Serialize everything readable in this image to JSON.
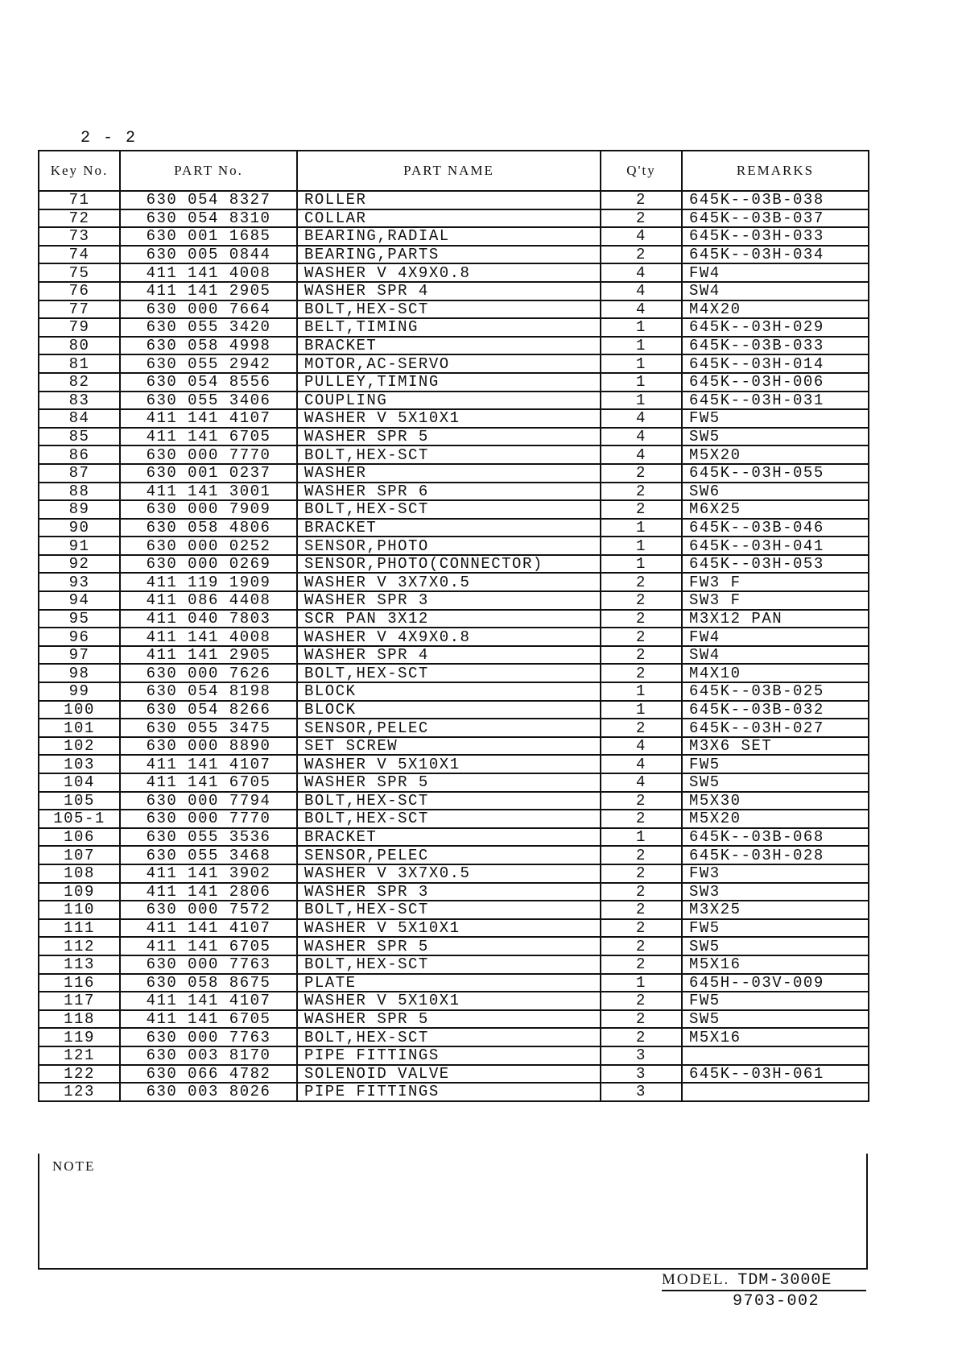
{
  "page_number": "2 - 2",
  "headers": {
    "key_no": "Key No.",
    "part_no": "PART No.",
    "part_name": "PART NAME",
    "qty": "Q'ty",
    "remarks": "REMARKS"
  },
  "rows": [
    [
      "71",
      "630 054 8327",
      "ROLLER",
      "2",
      "645K--03B-038"
    ],
    [
      "72",
      "630 054 8310",
      "COLLAR",
      "2",
      "645K--03B-037"
    ],
    [
      "73",
      "630 001 1685",
      "BEARING,RADIAL",
      "4",
      "645K--03H-033"
    ],
    [
      "74",
      "630 005 0844",
      "BEARING,PARTS",
      "2",
      "645K--03H-034"
    ],
    [
      "75",
      "411 141 4008",
      "WASHER V 4X9X0.8",
      "4",
      "FW4"
    ],
    [
      "76",
      "411 141 2905",
      "WASHER SPR 4",
      "4",
      "SW4"
    ],
    [
      "77",
      "630 000 7664",
      "BOLT,HEX-SCT",
      "4",
      "M4X20"
    ],
    [
      "79",
      "630 055 3420",
      "BELT,TIMING",
      "1",
      "645K--03H-029"
    ],
    [
      "80",
      "630 058 4998",
      "BRACKET",
      "1",
      "645K--03B-033"
    ],
    [
      "81",
      "630 055 2942",
      "MOTOR,AC-SERVO",
      "1",
      "645K--03H-014"
    ],
    [
      "82",
      "630 054 8556",
      "PULLEY,TIMING",
      "1",
      "645K--03H-006"
    ],
    [
      "83",
      "630 055 3406",
      "COUPLING",
      "1",
      "645K--03H-031"
    ],
    [
      "84",
      "411 141 4107",
      "WASHER V 5X10X1",
      "4",
      "FW5"
    ],
    [
      "85",
      "411 141 6705",
      "WASHER SPR 5",
      "4",
      "SW5"
    ],
    [
      "86",
      "630 000 7770",
      "BOLT,HEX-SCT",
      "4",
      "M5X20"
    ],
    [
      "87",
      "630 001 0237",
      "WASHER",
      "2",
      "645K--03H-055"
    ],
    [
      "88",
      "411 141 3001",
      "WASHER SPR 6",
      "2",
      "SW6"
    ],
    [
      "89",
      "630 000 7909",
      "BOLT,HEX-SCT",
      "2",
      "M6X25"
    ],
    [
      "90",
      "630 058 4806",
      "BRACKET",
      "1",
      "645K--03B-046"
    ],
    [
      "91",
      "630 000 0252",
      "SENSOR,PHOTO",
      "1",
      "645K--03H-041"
    ],
    [
      "92",
      "630 000 0269",
      "SENSOR,PHOTO(CONNECTOR)",
      "1",
      "645K--03H-053"
    ],
    [
      "93",
      "411 119 1909",
      "WASHER V 3X7X0.5",
      "2",
      "FW3 F"
    ],
    [
      "94",
      "411 086 4408",
      "WASHER SPR 3",
      "2",
      "SW3 F"
    ],
    [
      "95",
      "411 040 7803",
      "SCR PAN 3X12",
      "2",
      "M3X12 PAN"
    ],
    [
      "96",
      "411 141 4008",
      "WASHER V 4X9X0.8",
      "2",
      "FW4"
    ],
    [
      "97",
      "411 141 2905",
      "WASHER SPR 4",
      "2",
      "SW4"
    ],
    [
      "98",
      "630 000 7626",
      "BOLT,HEX-SCT",
      "2",
      "M4X10"
    ],
    [
      "99",
      "630 054 8198",
      "BLOCK",
      "1",
      "645K--03B-025"
    ],
    [
      "100",
      "630 054 8266",
      "BLOCK",
      "1",
      "645K--03B-032"
    ],
    [
      "101",
      "630 055 3475",
      "SENSOR,PELEC",
      "2",
      "645K--03H-027"
    ],
    [
      "102",
      "630 000 8890",
      "SET SCREW",
      "4",
      "M3X6 SET"
    ],
    [
      "103",
      "411 141 4107",
      "WASHER V 5X10X1",
      "4",
      "FW5"
    ],
    [
      "104",
      "411 141 6705",
      "WASHER SPR 5",
      "4",
      "SW5"
    ],
    [
      "105",
      "630 000 7794",
      "BOLT,HEX-SCT",
      "2",
      "M5X30"
    ],
    [
      "105-1",
      "630 000 7770",
      "BOLT,HEX-SCT",
      "2",
      "M5X20"
    ],
    [
      "106",
      "630 055 3536",
      "BRACKET",
      "1",
      "645K--03B-068"
    ],
    [
      "107",
      "630 055 3468",
      "SENSOR,PELEC",
      "2",
      "645K--03H-028"
    ],
    [
      "108",
      "411 141 3902",
      "WASHER V 3X7X0.5",
      "2",
      "FW3"
    ],
    [
      "109",
      "411 141 2806",
      "WASHER SPR 3",
      "2",
      "SW3"
    ],
    [
      "110",
      "630 000 7572",
      "BOLT,HEX-SCT",
      "2",
      "M3X25"
    ],
    [
      "111",
      "411 141 4107",
      "WASHER V 5X10X1",
      "2",
      "FW5"
    ],
    [
      "112",
      "411 141 6705",
      "WASHER SPR 5",
      "2",
      "SW5"
    ],
    [
      "113",
      "630 000 7763",
      "BOLT,HEX-SCT",
      "2",
      "M5X16"
    ],
    [
      "116",
      "630 058 8675",
      "PLATE",
      "1",
      "645H--03V-009"
    ],
    [
      "117",
      "411 141 4107",
      "WASHER V 5X10X1",
      "2",
      "FW5"
    ],
    [
      "118",
      "411 141 6705",
      "WASHER SPR 5",
      "2",
      "SW5"
    ],
    [
      "119",
      "630 000 7763",
      "BOLT,HEX-SCT",
      "2",
      "M5X16"
    ],
    [
      "121",
      "630 003 8170",
      "PIPE FITTINGS",
      "3",
      ""
    ],
    [
      "122",
      "630 066 4782",
      "SOLENOID VALVE",
      "3",
      "645K--03H-061"
    ],
    [
      "123",
      "630 003 8026",
      "PIPE FITTINGS",
      "3",
      ""
    ]
  ],
  "note_label": "NOTE",
  "model_label": "MODEL.",
  "model": "TDM-3000E",
  "doc_code": "9703-002"
}
